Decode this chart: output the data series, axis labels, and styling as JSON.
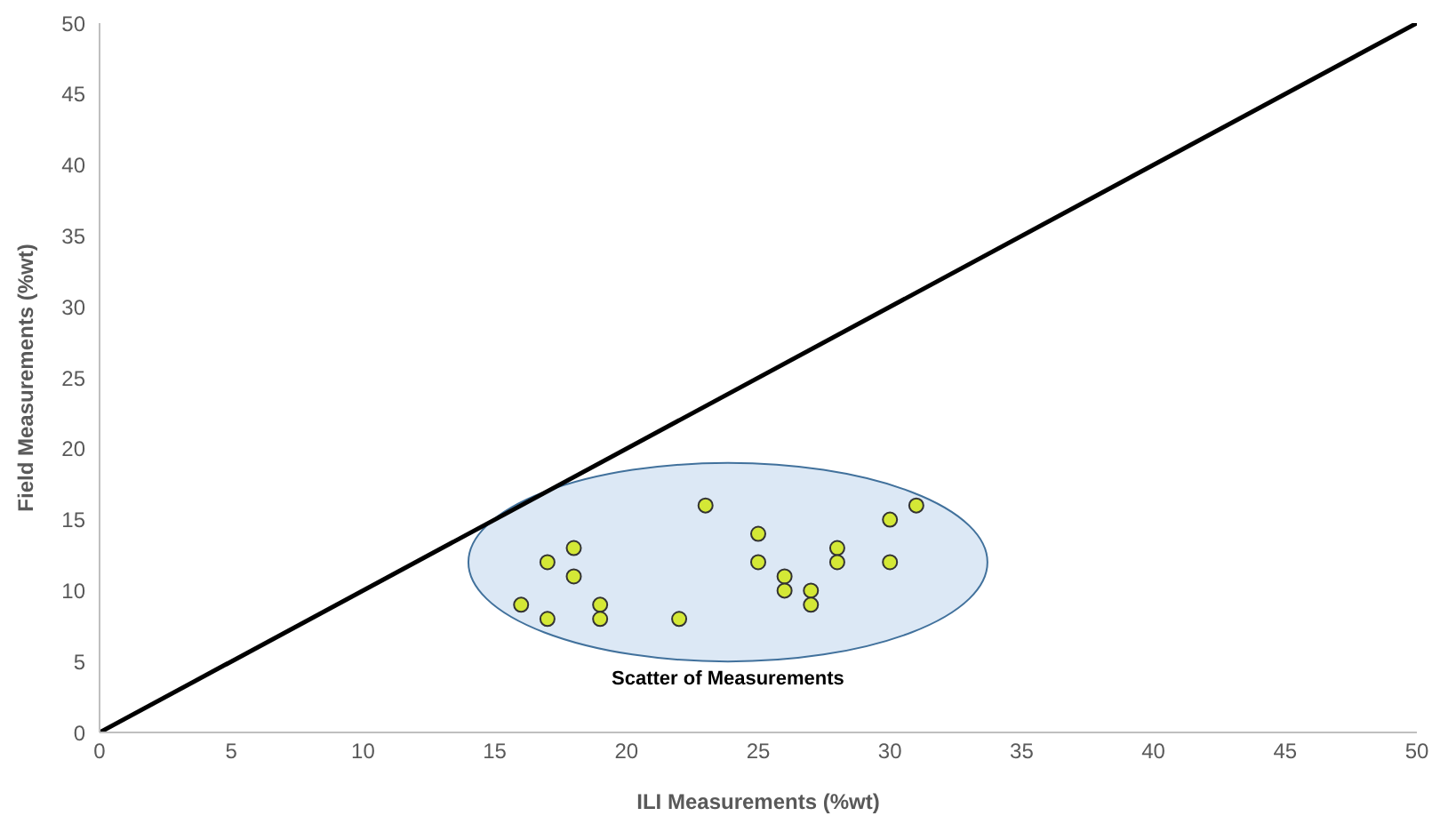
{
  "chart_data": {
    "type": "scatter",
    "xlabel": "ILI  Measurements (%wt)",
    "ylabel": "Field Measurements  (%wt)",
    "annotations": [
      "Scatter of Measurements"
    ],
    "xlim": [
      0,
      50
    ],
    "ylim": [
      0,
      50
    ],
    "xticks": [
      0,
      5,
      10,
      15,
      20,
      25,
      30,
      35,
      40,
      45,
      50
    ],
    "yticks": [
      0,
      5,
      10,
      15,
      20,
      25,
      30,
      35,
      40,
      45,
      50
    ],
    "grid": false,
    "legend": false,
    "marker": "circle",
    "series": [
      {
        "color": "#d4e836",
        "x": [
          16,
          17,
          17,
          18,
          18,
          19,
          19,
          22,
          23,
          25,
          25,
          26,
          26,
          27,
          27,
          28,
          28,
          30,
          30,
          31
        ],
        "values": [
          9,
          12,
          8,
          13,
          11,
          9,
          8,
          8,
          16,
          14,
          12,
          11,
          10,
          10,
          9,
          13,
          12,
          15,
          12,
          16
        ]
      },
      {
        "type": "line",
        "color": "#000000",
        "x": [
          0,
          50
        ],
        "values": [
          0,
          50
        ],
        "marker": "none",
        "line_style": "solid"
      }
    ]
  }
}
